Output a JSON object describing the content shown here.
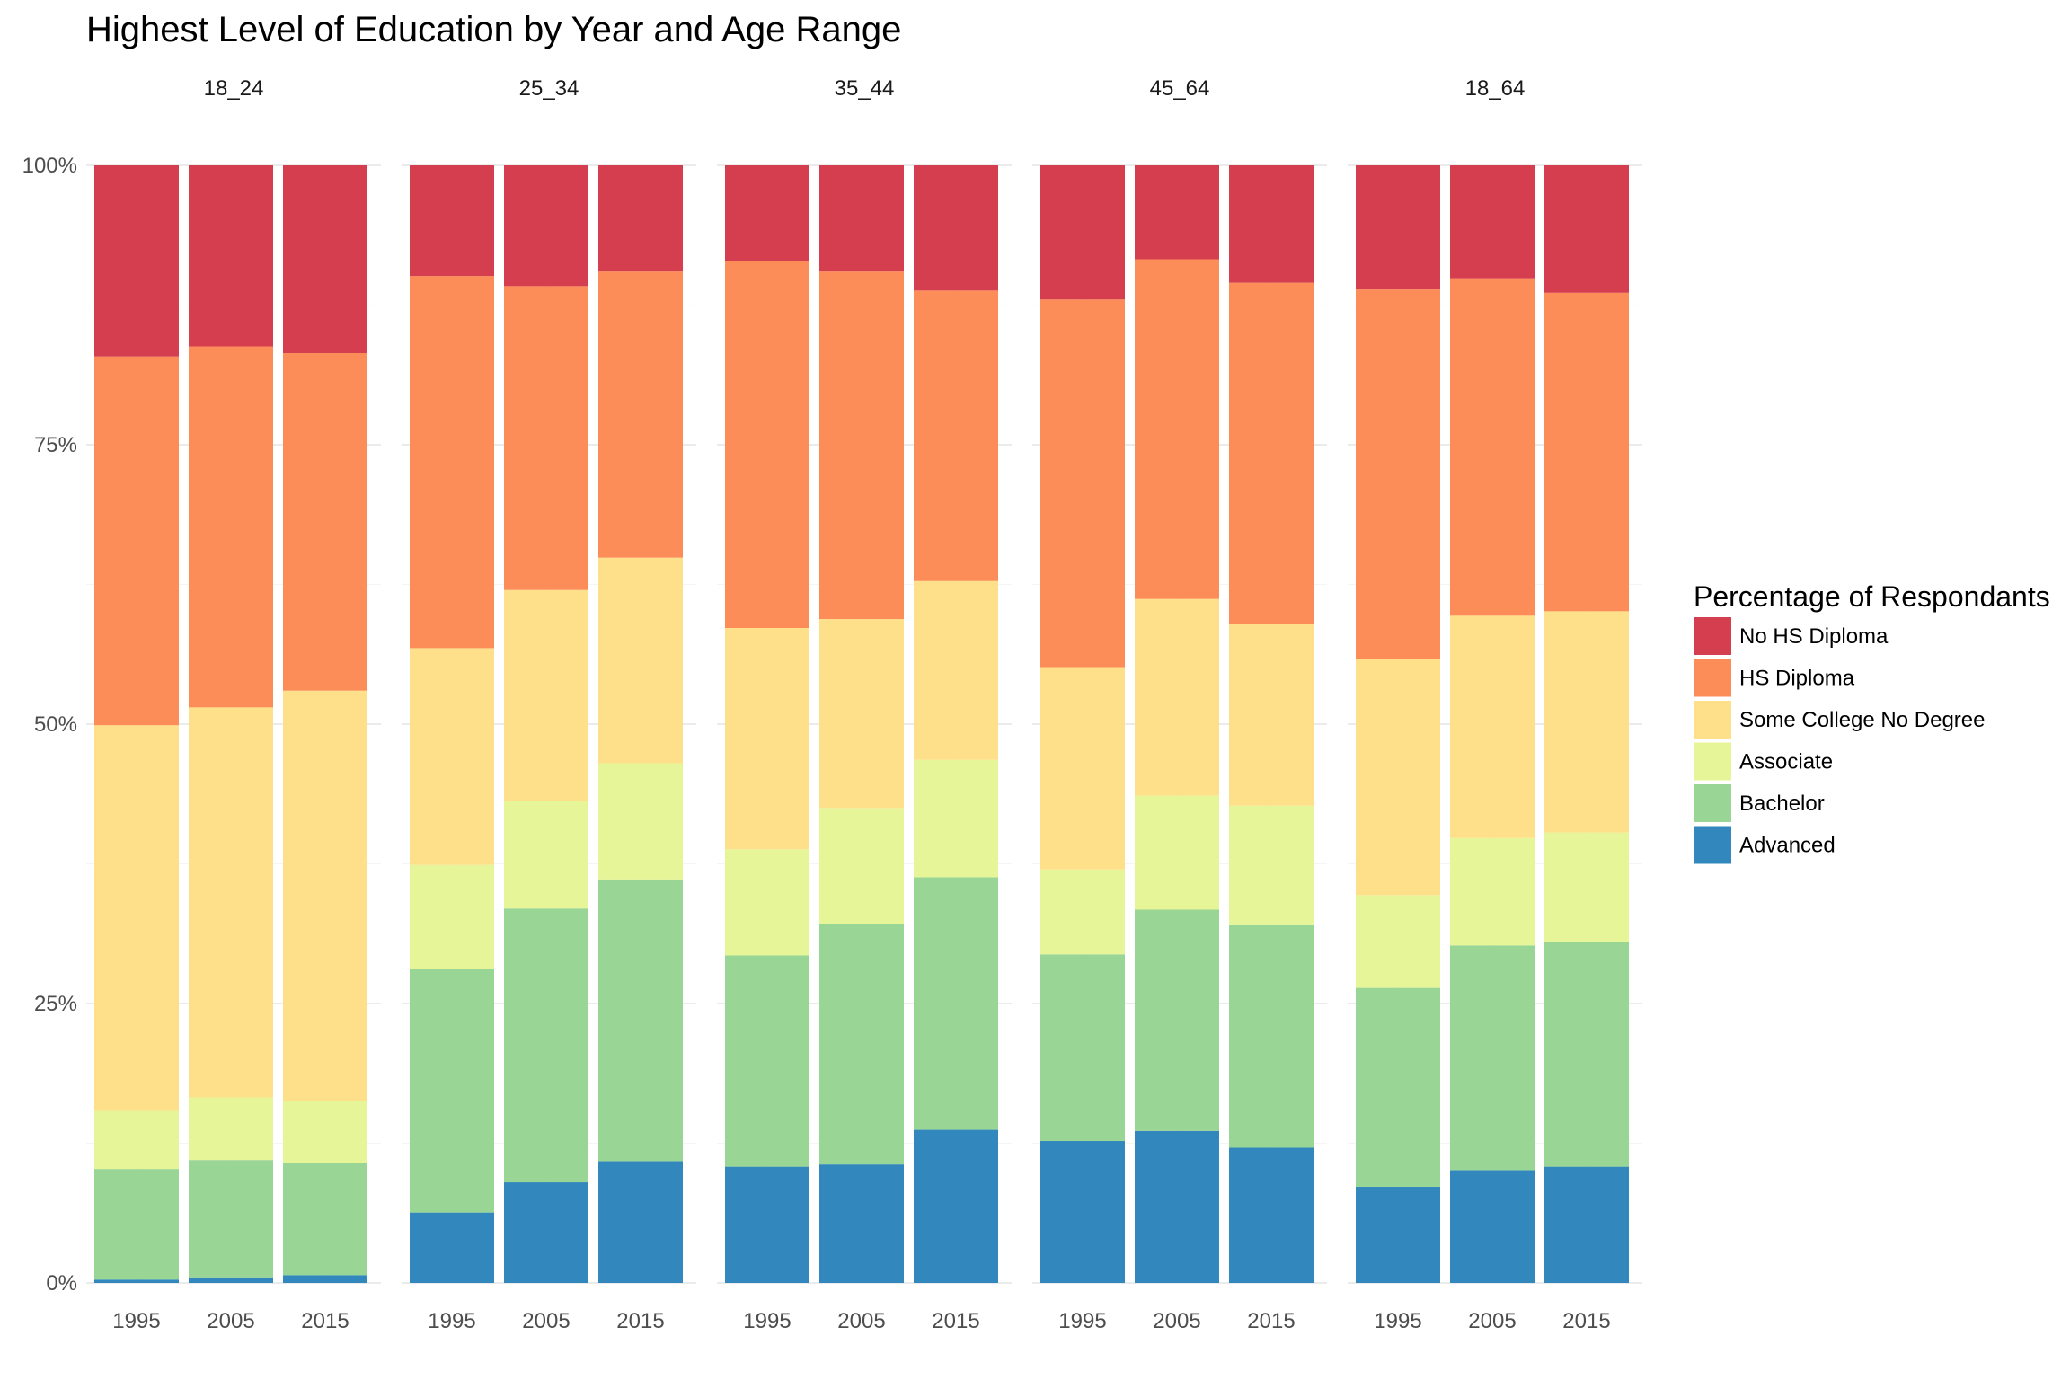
{
  "chart_data": {
    "type": "bar",
    "stacked": true,
    "normalized": true,
    "title": "Highest Level of Education by Year and Age Range",
    "xlabel": "",
    "ylabel": "",
    "ylim": [
      0,
      100
    ],
    "y_ticks": [
      "0%",
      "25%",
      "50%",
      "75%",
      "100%"
    ],
    "x_categories": [
      "1995",
      "2005",
      "2015"
    ],
    "legend_title": "Percentage of Respondants",
    "legend_position": "right",
    "grid": true,
    "levels": [
      {
        "name": "No HS Diploma",
        "color": "#d53e4f"
      },
      {
        "name": "HS Diploma",
        "color": "#fc8d59"
      },
      {
        "name": "Some College No Degree",
        "color": "#fee08b"
      },
      {
        "name": "Associate",
        "color": "#e6f598"
      },
      {
        "name": "Bachelor",
        "color": "#99d594"
      },
      {
        "name": "Advanced",
        "color": "#3288bd"
      }
    ],
    "stack_order_bottom_to_top": [
      "Advanced",
      "Bachelor",
      "Associate",
      "Some College No Degree",
      "HS Diploma",
      "No HS Diploma"
    ],
    "panels": [
      {
        "label": "18_24",
        "bars": [
          {
            "year": "1995",
            "values": {
              "Advanced": 0.3,
              "Bachelor": 9.9,
              "Associate": 5.2,
              "Some College No Degree": 34.5,
              "HS Diploma": 33.0,
              "No HS Diploma": 17.1
            }
          },
          {
            "year": "2005",
            "values": {
              "Advanced": 0.5,
              "Bachelor": 10.5,
              "Associate": 5.6,
              "Some College No Degree": 34.9,
              "HS Diploma": 32.3,
              "No HS Diploma": 16.2
            }
          },
          {
            "year": "2015",
            "values": {
              "Advanced": 0.7,
              "Bachelor": 10.0,
              "Associate": 5.6,
              "Some College No Degree": 36.7,
              "HS Diploma": 30.2,
              "No HS Diploma": 16.8
            }
          }
        ]
      },
      {
        "label": "25_34",
        "bars": [
          {
            "year": "1995",
            "values": {
              "Advanced": 6.3,
              "Bachelor": 21.8,
              "Associate": 9.3,
              "Some College No Degree": 19.4,
              "HS Diploma": 33.3,
              "No HS Diploma": 9.9
            }
          },
          {
            "year": "2005",
            "values": {
              "Advanced": 9.0,
              "Bachelor": 24.5,
              "Associate": 9.6,
              "Some College No Degree": 18.9,
              "HS Diploma": 27.2,
              "No HS Diploma": 10.8
            }
          },
          {
            "year": "2015",
            "values": {
              "Advanced": 10.9,
              "Bachelor": 25.2,
              "Associate": 10.4,
              "Some College No Degree": 18.4,
              "HS Diploma": 25.6,
              "No HS Diploma": 9.5
            }
          }
        ]
      },
      {
        "label": "35_44",
        "bars": [
          {
            "year": "1995",
            "values": {
              "Advanced": 10.4,
              "Bachelor": 18.9,
              "Associate": 9.5,
              "Some College No Degree": 19.8,
              "HS Diploma": 32.8,
              "No HS Diploma": 8.6
            }
          },
          {
            "year": "2005",
            "values": {
              "Advanced": 10.6,
              "Bachelor": 21.5,
              "Associate": 10.4,
              "Some College No Degree": 16.9,
              "HS Diploma": 31.1,
              "No HS Diploma": 9.5
            }
          },
          {
            "year": "2015",
            "values": {
              "Advanced": 13.7,
              "Bachelor": 22.6,
              "Associate": 10.5,
              "Some College No Degree": 16.0,
              "HS Diploma": 26.0,
              "No HS Diploma": 11.2
            }
          }
        ]
      },
      {
        "label": "45_64",
        "bars": [
          {
            "year": "1995",
            "values": {
              "Advanced": 12.7,
              "Bachelor": 16.7,
              "Associate": 7.6,
              "Some College No Degree": 18.1,
              "HS Diploma": 32.9,
              "No HS Diploma": 12.0
            }
          },
          {
            "year": "2005",
            "values": {
              "Advanced": 13.6,
              "Bachelor": 19.8,
              "Associate": 10.2,
              "Some College No Degree": 17.6,
              "HS Diploma": 30.4,
              "No HS Diploma": 8.4
            }
          },
          {
            "year": "2015",
            "values": {
              "Advanced": 12.1,
              "Bachelor": 19.9,
              "Associate": 10.7,
              "Some College No Degree": 16.3,
              "HS Diploma": 30.5,
              "No HS Diploma": 10.5
            }
          }
        ]
      },
      {
        "label": "18_64",
        "bars": [
          {
            "year": "1995",
            "values": {
              "Advanced": 8.6,
              "Bachelor": 17.8,
              "Associate": 8.3,
              "Some College No Degree": 21.1,
              "HS Diploma": 33.1,
              "No HS Diploma": 11.1
            }
          },
          {
            "year": "2005",
            "values": {
              "Advanced": 10.1,
              "Bachelor": 20.1,
              "Associate": 9.6,
              "Some College No Degree": 19.9,
              "HS Diploma": 30.2,
              "No HS Diploma": 10.1
            }
          },
          {
            "year": "2015",
            "values": {
              "Advanced": 10.4,
              "Bachelor": 20.1,
              "Associate": 9.8,
              "Some College No Degree": 19.8,
              "HS Diploma": 28.5,
              "No HS Diploma": 11.4
            }
          }
        ]
      }
    ]
  }
}
